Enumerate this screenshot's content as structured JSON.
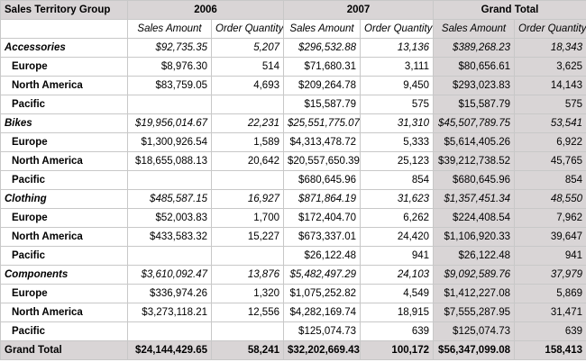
{
  "header": {
    "row_label": "Sales Territory Group",
    "years": [
      "2006",
      "2007"
    ],
    "grand_total_label": "Grand Total",
    "measure_sales": "Sales Amount",
    "measure_qty": "Order Quantity"
  },
  "groups": [
    {
      "name": "Accessories",
      "values": [
        "$92,735.35",
        "5,207",
        "$296,532.88",
        "13,136",
        "$389,268.23",
        "18,343"
      ],
      "children": [
        {
          "name": "Europe",
          "values": [
            "$8,976.30",
            "514",
            "$71,680.31",
            "3,111",
            "$80,656.61",
            "3,625"
          ]
        },
        {
          "name": "North America",
          "values": [
            "$83,759.05",
            "4,693",
            "$209,264.78",
            "9,450",
            "$293,023.83",
            "14,143"
          ]
        },
        {
          "name": "Pacific",
          "values": [
            "",
            "",
            "$15,587.79",
            "575",
            "$15,587.79",
            "575"
          ]
        }
      ]
    },
    {
      "name": "Bikes",
      "values": [
        "$19,956,014.67",
        "22,231",
        "$25,551,775.07",
        "31,310",
        "$45,507,789.75",
        "53,541"
      ],
      "children": [
        {
          "name": "Europe",
          "values": [
            "$1,300,926.54",
            "1,589",
            "$4,313,478.72",
            "5,333",
            "$5,614,405.26",
            "6,922"
          ]
        },
        {
          "name": "North America",
          "values": [
            "$18,655,088.13",
            "20,642",
            "$20,557,650.39",
            "25,123",
            "$39,212,738.52",
            "45,765"
          ]
        },
        {
          "name": "Pacific",
          "values": [
            "",
            "",
            "$680,645.96",
            "854",
            "$680,645.96",
            "854"
          ]
        }
      ]
    },
    {
      "name": "Clothing",
      "values": [
        "$485,587.15",
        "16,927",
        "$871,864.19",
        "31,623",
        "$1,357,451.34",
        "48,550"
      ],
      "children": [
        {
          "name": "Europe",
          "values": [
            "$52,003.83",
            "1,700",
            "$172,404.70",
            "6,262",
            "$224,408.54",
            "7,962"
          ]
        },
        {
          "name": "North America",
          "values": [
            "$433,583.32",
            "15,227",
            "$673,337.01",
            "24,420",
            "$1,106,920.33",
            "39,647"
          ]
        },
        {
          "name": "Pacific",
          "values": [
            "",
            "",
            "$26,122.48",
            "941",
            "$26,122.48",
            "941"
          ]
        }
      ]
    },
    {
      "name": "Components",
      "values": [
        "$3,610,092.47",
        "13,876",
        "$5,482,497.29",
        "24,103",
        "$9,092,589.76",
        "37,979"
      ],
      "children": [
        {
          "name": "Europe",
          "values": [
            "$336,974.26",
            "1,320",
            "$1,075,252.82",
            "4,549",
            "$1,412,227.08",
            "5,869"
          ]
        },
        {
          "name": "North America",
          "values": [
            "$3,273,118.21",
            "12,556",
            "$4,282,169.74",
            "18,915",
            "$7,555,287.95",
            "31,471"
          ]
        },
        {
          "name": "Pacific",
          "values": [
            "",
            "",
            "$125,074.73",
            "639",
            "$125,074.73",
            "639"
          ]
        }
      ]
    }
  ],
  "grand_total": {
    "label": "Grand Total",
    "values": [
      "$24,144,429.65",
      "58,241",
      "$32,202,669.43",
      "100,172",
      "$56,347,099.08",
      "158,413"
    ]
  },
  "colors": {
    "header_bg": "#d9d5d6",
    "grid_line": "#c8c8c8"
  }
}
